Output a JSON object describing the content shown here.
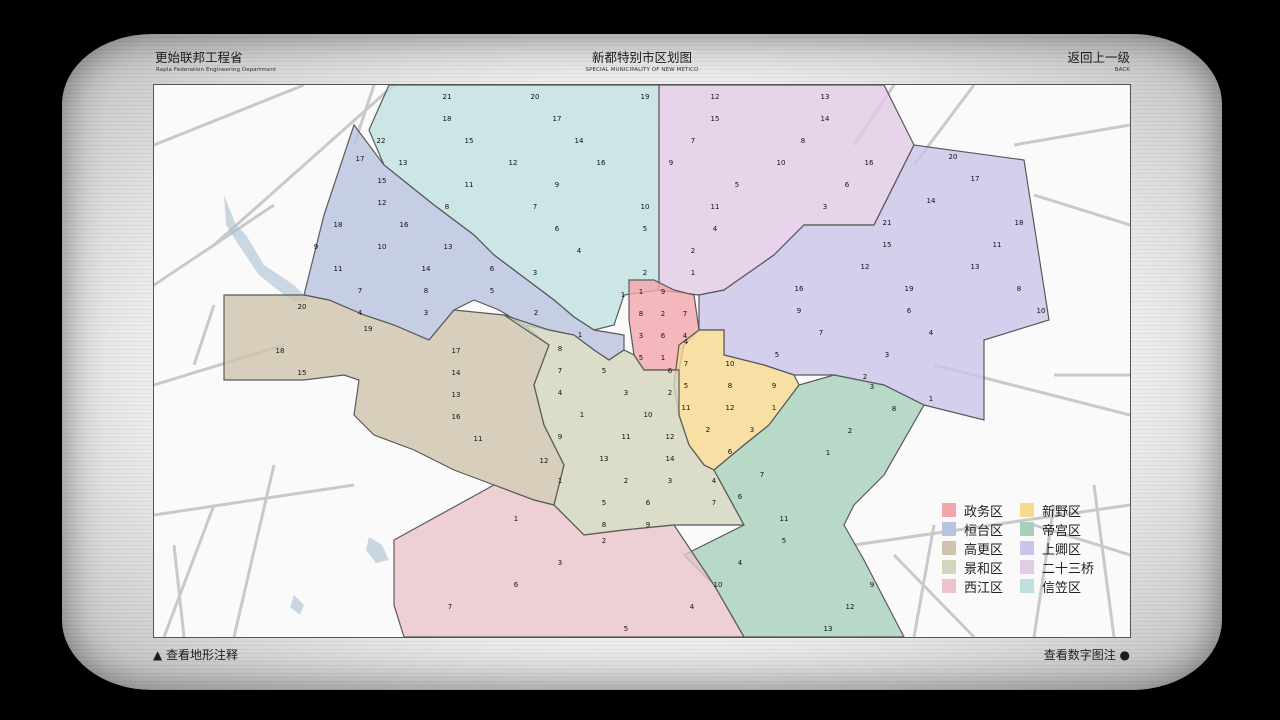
{
  "header": {
    "left_title": "更始联邦工程省",
    "left_subtitle": "Rapla Federation Engineering Department",
    "center_title": "新都特别市区划图",
    "center_subtitle": "SPECIAL MUNICIPALITY OF NEW METICO",
    "back_label": "返回上一级",
    "back_subtitle": "BACK"
  },
  "footer": {
    "terrain_label": "▲ 查看地形注释",
    "numbers_label": "查看数字图注 ●"
  },
  "colors": {
    "zhengwu": "#f2a6ab",
    "huantai": "#b8c3e0",
    "gaogeng": "#cfc3ad",
    "jinghe": "#d3d6bc",
    "xijiang": "#ebc4c9",
    "xinye": "#f7d98f",
    "digong": "#a8cfbb",
    "shangqing": "#c9c4ea",
    "ershisan": "#e3cbe6",
    "xinli": "#bfe1de"
  },
  "legend": [
    {
      "name": "政务区",
      "key": "zhengwu"
    },
    {
      "name": "新野区",
      "key": "xinye"
    },
    {
      "name": "桓台区",
      "key": "huantai"
    },
    {
      "name": "帝宫区",
      "key": "digong"
    },
    {
      "name": "高更区",
      "key": "gaogeng"
    },
    {
      "name": "上卿区",
      "key": "shangqing"
    },
    {
      "name": "景和区",
      "key": "jinghe"
    },
    {
      "name": "二十三桥",
      "key": "ershisan"
    },
    {
      "name": "西江区",
      "key": "xijiang"
    },
    {
      "name": "信笠区",
      "key": "xinli"
    }
  ],
  "districts": [
    {
      "key": "xinli",
      "labels": [
        "21",
        "20",
        "19",
        "18",
        "17",
        "22",
        "15",
        "14",
        "13",
        "12",
        "16",
        "11",
        "9",
        "8",
        "7",
        "10",
        "6",
        "5",
        "4",
        "3",
        "2",
        "1"
      ]
    },
    {
      "key": "ershisan",
      "labels": [
        "12",
        "13",
        "15",
        "14",
        "7",
        "8",
        "9",
        "10",
        "16",
        "5",
        "6",
        "11",
        "3",
        "4",
        "2",
        "1"
      ]
    },
    {
      "key": "huantai",
      "labels": [
        "17",
        "15",
        "12",
        "18",
        "16",
        "9",
        "10",
        "13",
        "11",
        "14",
        "6",
        "7",
        "8",
        "5",
        "4",
        "3",
        "2",
        "1"
      ]
    },
    {
      "key": "shangqing",
      "labels": [
        "20",
        "17",
        "14",
        "21",
        "18",
        "15",
        "11",
        "12",
        "13",
        "16",
        "19",
        "8",
        "9",
        "6",
        "10",
        "7",
        "4",
        "5",
        "3",
        "2",
        "1"
      ]
    },
    {
      "key": "zhengwu",
      "labels": [
        "1",
        "9",
        "8",
        "2",
        "7",
        "3",
        "6",
        "4",
        "5",
        "1"
      ]
    },
    {
      "key": "xinye",
      "labels": [
        "4",
        "7",
        "10",
        "5",
        "8",
        "9",
        "11",
        "12",
        "1",
        "2",
        "3",
        "6"
      ]
    },
    {
      "key": "gaogeng",
      "labels": [
        "20",
        "19",
        "18",
        "17",
        "15",
        "14",
        "13",
        "16",
        "11",
        "12"
      ]
    },
    {
      "key": "jinghe",
      "labels": [
        "8",
        "7",
        "5",
        "6",
        "4",
        "3",
        "2",
        "1",
        "10",
        "9",
        "11",
        "12",
        "13",
        "14",
        "1",
        "2",
        "3",
        "4",
        "5",
        "6",
        "7",
        "8",
        "9"
      ]
    },
    {
      "key": "digong",
      "labels": [
        "3",
        "8",
        "2",
        "1",
        "7",
        "6",
        "11",
        "5",
        "4",
        "10",
        "9",
        "12",
        "13"
      ]
    },
    {
      "key": "xijiang",
      "labels": [
        "1",
        "2",
        "3",
        "6",
        "7",
        "4",
        "5"
      ]
    }
  ]
}
